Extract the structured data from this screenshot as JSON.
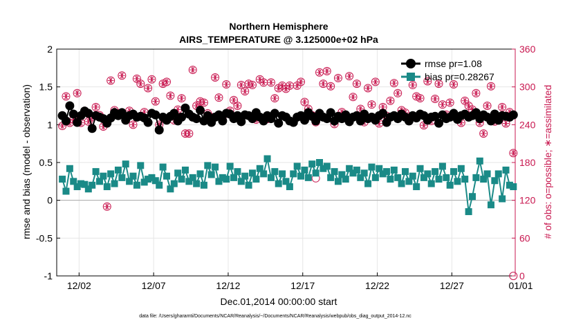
{
  "chart_data": {
    "type": "line",
    "title_line1": "Northern Hemisphere",
    "title_line2": "AIRS_TEMPERATURE @ 3.125000e+02 hPa",
    "xlabel": "Dec.01,2014 00:00:00 start",
    "ylabel": "rmse and bias (model - observation)",
    "y2label": "# of obs: o=possible; ∗=assimilated",
    "footnote": "data file: /Users/gharamti/Documents/NCAR/Reanalysis/~/Documents/NCAR/Reanalysis/webpub/obs_diag_output_2014-12.nc",
    "xlim": [
      0.5,
      31.25
    ],
    "ylim": [
      -1,
      2
    ],
    "y2lim": [
      0,
      360
    ],
    "grid": true,
    "legend_position": "top-right",
    "x_ticks": [
      {
        "x": 2,
        "label": "12/02"
      },
      {
        "x": 7,
        "label": "12/07"
      },
      {
        "x": 12,
        "label": "12/12"
      },
      {
        "x": 17,
        "label": "12/17"
      },
      {
        "x": 22,
        "label": "12/22"
      },
      {
        "x": 27,
        "label": "12/27"
      },
      {
        "x": 32,
        "label": "01/01"
      }
    ],
    "y_ticks": [
      {
        "y": 2,
        "label": "2"
      },
      {
        "y": 1.5,
        "label": "1.5"
      },
      {
        "y": 1,
        "label": "1"
      },
      {
        "y": 0.5,
        "label": "0.5"
      },
      {
        "y": 0,
        "label": "0"
      },
      {
        "y": -0.5,
        "label": "-0.5"
      },
      {
        "y": -1,
        "label": "-1"
      }
    ],
    "y2_ticks": [
      {
        "y": 360,
        "label": "360"
      },
      {
        "y": 300,
        "label": "300"
      },
      {
        "y": 240,
        "label": "240"
      },
      {
        "y": 180,
        "label": "180"
      },
      {
        "y": 120,
        "label": "120"
      },
      {
        "y": 60,
        "label": "60"
      },
      {
        "y": 0,
        "label": "0"
      }
    ],
    "series": [
      {
        "name": "rmse pr=1.08",
        "color": "#000000",
        "marker": "circle",
        "x": [
          0.875,
          1.125,
          1.375,
          1.625,
          1.875,
          2.125,
          2.375,
          2.625,
          2.875,
          3.125,
          3.375,
          3.625,
          3.875,
          4.125,
          4.375,
          4.625,
          4.875,
          5.125,
          5.375,
          5.625,
          5.875,
          6.125,
          6.375,
          6.625,
          6.875,
          7.125,
          7.375,
          7.625,
          7.875,
          8.125,
          8.375,
          8.625,
          8.875,
          9.125,
          9.375,
          9.625,
          9.875,
          10.125,
          10.375,
          10.625,
          10.875,
          11.125,
          11.375,
          11.625,
          11.875,
          12.125,
          12.375,
          12.625,
          12.875,
          13.125,
          13.375,
          13.625,
          13.875,
          14.125,
          14.375,
          14.625,
          14.875,
          15.125,
          15.375,
          15.625,
          15.875,
          16.125,
          16.375,
          16.625,
          16.875,
          17.125,
          17.375,
          17.625,
          17.875,
          18.125,
          18.375,
          18.625,
          18.875,
          19.125,
          19.375,
          19.625,
          19.875,
          20.125,
          20.375,
          20.625,
          20.875,
          21.125,
          21.375,
          21.625,
          21.875,
          22.125,
          22.375,
          22.625,
          22.875,
          23.125,
          23.375,
          23.625,
          23.875,
          24.125,
          24.375,
          24.625,
          24.875,
          25.125,
          25.375,
          25.625,
          25.875,
          26.125,
          26.375,
          26.625,
          26.875,
          27.125,
          27.375,
          27.625,
          27.875,
          28.125,
          28.375,
          28.625,
          28.875,
          29.125,
          29.375,
          29.625,
          29.875,
          30.125,
          30.375,
          30.625,
          30.875,
          31.125
        ],
        "values": [
          1.12,
          1.05,
          1.25,
          1.14,
          1.03,
          1.12,
          1.18,
          1.15,
          0.95,
          1.12,
          1.1,
          1.08,
          1.02,
          1.09,
          1.16,
          1.12,
          1.16,
          1.06,
          1.12,
          1.14,
          1.1,
          1.11,
          1.09,
          1.03,
          1.15,
          1.13,
          0.93,
          1.1,
          1.06,
          1.11,
          1.15,
          1.05,
          1.1,
          1.22,
          1.14,
          1.1,
          1.08,
          1.19,
          1.05,
          1.12,
          1.03,
          1.1,
          1.13,
          1.05,
          1.15,
          1.14,
          1.08,
          1.12,
          1.04,
          1.13,
          1.12,
          1.08,
          1.16,
          1.1,
          1.05,
          1.12,
          1.08,
          1.15,
          1.02,
          1.12,
          1.1,
          1.05,
          1.03,
          1.1,
          1.12,
          1.06,
          1.16,
          1.11,
          1.05,
          1.15,
          1.1,
          1.08,
          1.16,
          1.05,
          1.11,
          1.08,
          1.13,
          1.04,
          1.1,
          1.12,
          1.05,
          1.14,
          1.08,
          1.1,
          1.06,
          1.12,
          1.15,
          1.03,
          1.1,
          1.12,
          1.08,
          1.14,
          1.1,
          1.05,
          1.12,
          1.09,
          1.14,
          1.12,
          1.06,
          1.1,
          1.11,
          1.02,
          1.13,
          1.08,
          1.1,
          1.15,
          1.07,
          1.12,
          1.14,
          1.1,
          1.12,
          1.16,
          1.08,
          1.13,
          1.1,
          1.05,
          1.14,
          1.06,
          1.12,
          1.11,
          1.1,
          1.13
        ]
      },
      {
        "name": "bias pr=0.28267",
        "color": "#1a8a87",
        "marker": "square",
        "x": [
          0.875,
          1.125,
          1.375,
          1.625,
          1.875,
          2.125,
          2.375,
          2.625,
          2.875,
          3.125,
          3.375,
          3.625,
          3.875,
          4.125,
          4.375,
          4.625,
          4.875,
          5.125,
          5.375,
          5.625,
          5.875,
          6.125,
          6.375,
          6.625,
          6.875,
          7.125,
          7.375,
          7.625,
          7.875,
          8.125,
          8.375,
          8.625,
          8.875,
          9.125,
          9.375,
          9.625,
          9.875,
          10.125,
          10.375,
          10.625,
          10.875,
          11.125,
          11.375,
          11.625,
          11.875,
          12.125,
          12.375,
          12.625,
          12.875,
          13.125,
          13.375,
          13.625,
          13.875,
          14.125,
          14.375,
          14.625,
          14.875,
          15.125,
          15.375,
          15.625,
          15.875,
          16.125,
          16.375,
          16.625,
          16.875,
          17.125,
          17.375,
          17.625,
          17.875,
          18.125,
          18.375,
          18.625,
          18.875,
          19.125,
          19.375,
          19.625,
          19.875,
          20.125,
          20.375,
          20.625,
          20.875,
          21.125,
          21.375,
          21.625,
          21.875,
          22.125,
          22.375,
          22.625,
          22.875,
          23.125,
          23.375,
          23.625,
          23.875,
          24.125,
          24.375,
          24.625,
          24.875,
          25.125,
          25.375,
          25.625,
          25.875,
          26.125,
          26.375,
          26.625,
          26.875,
          27.125,
          27.375,
          27.625,
          27.875,
          28.125,
          28.375,
          28.625,
          28.875,
          29.125,
          29.375,
          29.625,
          29.875,
          30.125,
          30.375,
          30.625,
          30.875,
          31.125
        ],
        "values": [
          0.28,
          0.12,
          0.42,
          0.25,
          0.18,
          0.22,
          0.21,
          0.15,
          0.2,
          0.38,
          0.25,
          0.32,
          0.18,
          0.35,
          0.22,
          0.4,
          0.3,
          0.48,
          0.25,
          0.32,
          0.2,
          0.46,
          0.24,
          0.28,
          0.3,
          0.26,
          0.2,
          0.44,
          0.32,
          0.15,
          0.22,
          0.36,
          0.28,
          0.4,
          0.25,
          0.3,
          0.22,
          0.35,
          0.2,
          0.46,
          0.34,
          0.44,
          0.25,
          0.3,
          0.28,
          0.45,
          0.3,
          0.38,
          0.25,
          0.32,
          0.2,
          0.36,
          0.28,
          0.42,
          0.35,
          0.55,
          0.3,
          0.38,
          0.22,
          0.35,
          0.25,
          0.18,
          0.35,
          0.45,
          0.32,
          0.4,
          0.3,
          0.48,
          0.36,
          0.5,
          0.42,
          0.45,
          0.3,
          0.38,
          0.25,
          0.34,
          0.28,
          0.42,
          0.36,
          0.4,
          0.3,
          0.36,
          0.22,
          0.44,
          0.3,
          0.42,
          0.35,
          0.38,
          0.28,
          0.4,
          0.3,
          0.22,
          0.38,
          0.25,
          0.32,
          0.18,
          0.42,
          0.3,
          0.35,
          0.22,
          0.38,
          0.28,
          0.45,
          0.3,
          0.2,
          0.38,
          0.25,
          0.42,
          0.28,
          -0.15,
          0.05,
          0.3,
          0.52,
          0.28,
          0.35,
          -0.06,
          0.26,
          0.35,
          0.02,
          0.4,
          0.2,
          0.18
        ]
      },
      {
        "name": "# of obs possible",
        "color": "#c8174f",
        "marker": "circle-open",
        "axis": "right",
        "x": [
          0.875,
          1.125,
          1.375,
          1.625,
          1.875,
          2.125,
          2.375,
          2.625,
          2.875,
          3.125,
          3.375,
          3.625,
          3.875,
          4.125,
          4.375,
          4.625,
          4.875,
          5.125,
          5.375,
          5.625,
          5.875,
          6.125,
          6.375,
          6.625,
          6.875,
          7.125,
          7.375,
          7.625,
          7.875,
          8.125,
          8.375,
          8.625,
          8.875,
          9.125,
          9.375,
          9.625,
          9.875,
          10.125,
          10.375,
          10.625,
          10.875,
          11.125,
          11.375,
          11.625,
          11.875,
          12.125,
          12.375,
          12.625,
          12.875,
          13.125,
          13.375,
          13.625,
          13.875,
          14.125,
          14.375,
          14.625,
          14.875,
          15.125,
          15.375,
          15.625,
          15.875,
          16.125,
          16.375,
          16.625,
          16.875,
          17.125,
          17.375,
          17.625,
          17.875,
          18.125,
          18.375,
          18.625,
          18.875,
          19.125,
          19.375,
          19.625,
          19.875,
          20.125,
          20.375,
          20.625,
          20.875,
          21.125,
          21.375,
          21.625,
          21.875,
          22.125,
          22.375,
          22.625,
          22.875,
          23.125,
          23.375,
          23.625,
          23.875,
          24.125,
          24.375,
          24.625,
          24.875,
          25.125,
          25.375,
          25.625,
          25.875,
          26.125,
          26.375,
          26.625,
          26.875,
          27.125,
          27.375,
          27.625,
          27.875,
          28.125,
          28.375,
          28.625,
          28.875,
          29.125,
          29.375,
          29.625,
          29.875,
          30.125,
          30.375,
          30.625,
          30.875,
          31.125
        ],
        "values": [
          238,
          285,
          243,
          248,
          290,
          243,
          262,
          245,
          252,
          268,
          255,
          237,
          110,
          310,
          263,
          258,
          318,
          248,
          262,
          240,
          313,
          305,
          260,
          298,
          312,
          277,
          240,
          305,
          308,
          286,
          247,
          264,
          282,
          226,
          226,
          327,
          270,
          277,
          275,
          258,
          252,
          315,
          283,
          248,
          304,
          262,
          279,
          270,
          303,
          293,
          305,
          303,
          248,
          312,
          307,
          249,
          307,
          282,
          298,
          302,
          297,
          302,
          245,
          302,
          308,
          276,
          265,
          255,
          244,
          323,
          305,
          325,
          301,
          241,
          314,
          260,
          256,
          317,
          284,
          305,
          265,
          244,
          298,
          272,
          308,
          242,
          268,
          254,
          278,
          306,
          290,
          263,
          259,
          251,
          303,
          285,
          282,
          239,
          309,
          246,
          281,
          305,
          272,
          256,
          275,
          304,
          253,
          243,
          278,
          270,
          264,
          290,
          243,
          226,
          270,
          301,
          245,
          252,
          268,
          242,
          260,
          195
        ]
      },
      {
        "name": "# of obs assimilated",
        "color": "#c8174f",
        "marker": "asterisk",
        "axis": "right",
        "x": [
          0.875,
          1.125,
          1.375,
          1.625,
          1.875,
          2.125,
          2.375,
          2.625,
          2.875,
          3.125,
          3.375,
          3.625,
          3.875,
          4.125,
          4.375,
          4.625,
          4.875,
          5.125,
          5.375,
          5.625,
          5.875,
          6.125,
          6.375,
          6.625,
          6.875,
          7.125,
          7.375,
          7.625,
          7.875,
          8.125,
          8.375,
          8.625,
          8.875,
          9.125,
          9.375,
          9.625,
          9.875,
          10.125,
          10.375,
          10.625,
          10.875,
          11.125,
          11.375,
          11.625,
          11.875,
          12.125,
          12.375,
          12.625,
          12.875,
          13.125,
          13.375,
          13.625,
          13.875,
          14.125,
          14.375,
          14.625,
          14.875,
          15.125,
          15.375,
          15.625,
          15.875,
          16.125,
          16.375,
          16.625,
          16.875,
          17.125,
          17.375,
          17.625,
          17.875,
          18.125,
          18.375,
          18.625,
          18.875,
          19.125,
          19.375,
          19.625,
          19.875,
          20.125,
          20.375,
          20.625,
          20.875,
          21.125,
          21.375,
          21.625,
          21.875,
          22.125,
          22.375,
          22.625,
          22.875,
          23.125,
          23.375,
          23.625,
          23.875,
          24.125,
          24.375,
          24.625,
          24.875,
          25.125,
          25.375,
          25.625,
          25.875,
          26.125,
          26.375,
          26.625,
          26.875,
          27.125,
          27.375,
          27.625,
          27.875,
          28.125,
          28.375,
          28.625,
          28.875,
          29.125,
          29.375,
          29.625,
          29.875,
          30.125,
          30.375,
          30.625,
          30.875,
          31.125
        ],
        "values": [
          238,
          285,
          243,
          248,
          290,
          243,
          262,
          245,
          252,
          268,
          255,
          237,
          110,
          310,
          263,
          258,
          318,
          248,
          262,
          240,
          313,
          305,
          260,
          298,
          312,
          277,
          240,
          305,
          308,
          286,
          247,
          264,
          282,
          226,
          226,
          327,
          270,
          277,
          275,
          258,
          252,
          315,
          283,
          248,
          304,
          262,
          279,
          270,
          303,
          293,
          305,
          303,
          248,
          312,
          307,
          249,
          307,
          282,
          298,
          302,
          297,
          302,
          245,
          302,
          308,
          276,
          265,
          255,
          244,
          323,
          305,
          325,
          301,
          241,
          314,
          260,
          256,
          317,
          284,
          305,
          265,
          244,
          298,
          272,
          308,
          242,
          268,
          254,
          278,
          306,
          290,
          263,
          259,
          251,
          303,
          285,
          282,
          239,
          309,
          246,
          281,
          305,
          272,
          256,
          275,
          304,
          253,
          243,
          278,
          270,
          264,
          290,
          243,
          226,
          270,
          301,
          245,
          252,
          268,
          242,
          260,
          195
        ]
      },
      {
        "name": "# of obs extra",
        "color": "#c8174f",
        "marker": "circle-open",
        "axis": "right",
        "x": [
          17.875,
          31.125
        ],
        "values": [
          155,
          0
        ]
      }
    ]
  }
}
